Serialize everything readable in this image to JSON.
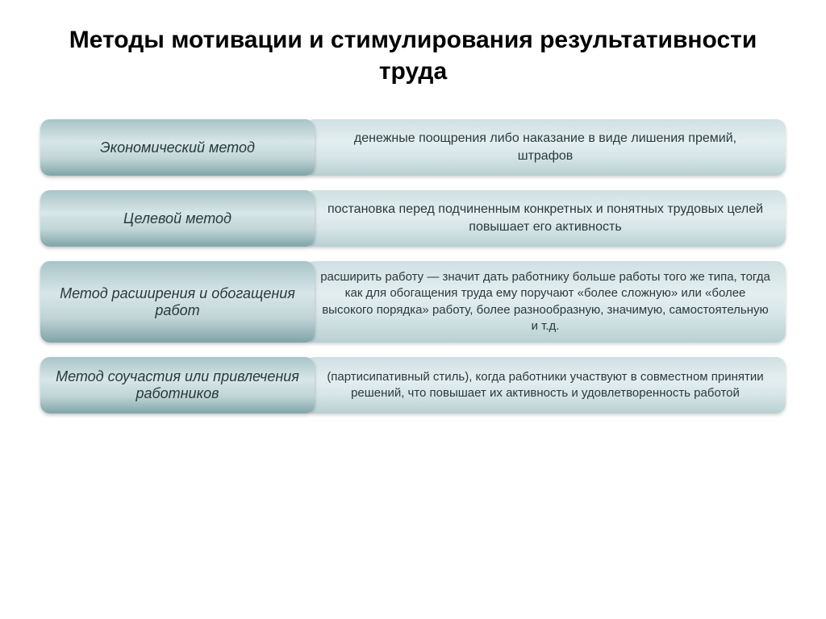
{
  "title": "Методы мотивации и стимулирования результативности труда",
  "colors": {
    "method_gradient": [
      "#a8c4c8",
      "#d8e6e8",
      "#c0d4d6",
      "#7fa4a8"
    ],
    "desc_gradient": [
      "#d0e0e2",
      "#e4eef0",
      "#d8e6e8",
      "#b8d0d2"
    ],
    "text": "#2a3a3c",
    "title_color": "#000000",
    "background": "#ffffff"
  },
  "typography": {
    "title_fontsize": 30,
    "title_weight": "bold",
    "method_fontsize": 18,
    "method_style": "italic",
    "desc_fontsize": 16,
    "desc_fontsize_small": 15
  },
  "layout": {
    "method_box_width": 340,
    "border_radius": 12,
    "row_gap": 18,
    "overlap": 12
  },
  "rows": [
    {
      "method": "Экономический метод",
      "description": "денежные поощрения либо наказание в виде лишения премий, штрафов"
    },
    {
      "method": "Целевой метод",
      "description": "постановка перед подчиненным конкретных и понятных трудовых целей повышает его активность"
    },
    {
      "method": "Метод расширения и обогащения работ",
      "description": "расширить работу — значит дать работнику больше работы того же типа, тогда как для обогащения труда  ему поручают «более сложную» или «более высокого порядка» работу, более разнообразную, значимую, самостоятельную и т.д."
    },
    {
      "method": "Метод соучастия или привлечения работников",
      "description": "(партисипативный стиль), когда работники участвуют в совместном принятии решений, что повышает их активность и удовлетворенность работой"
    }
  ]
}
